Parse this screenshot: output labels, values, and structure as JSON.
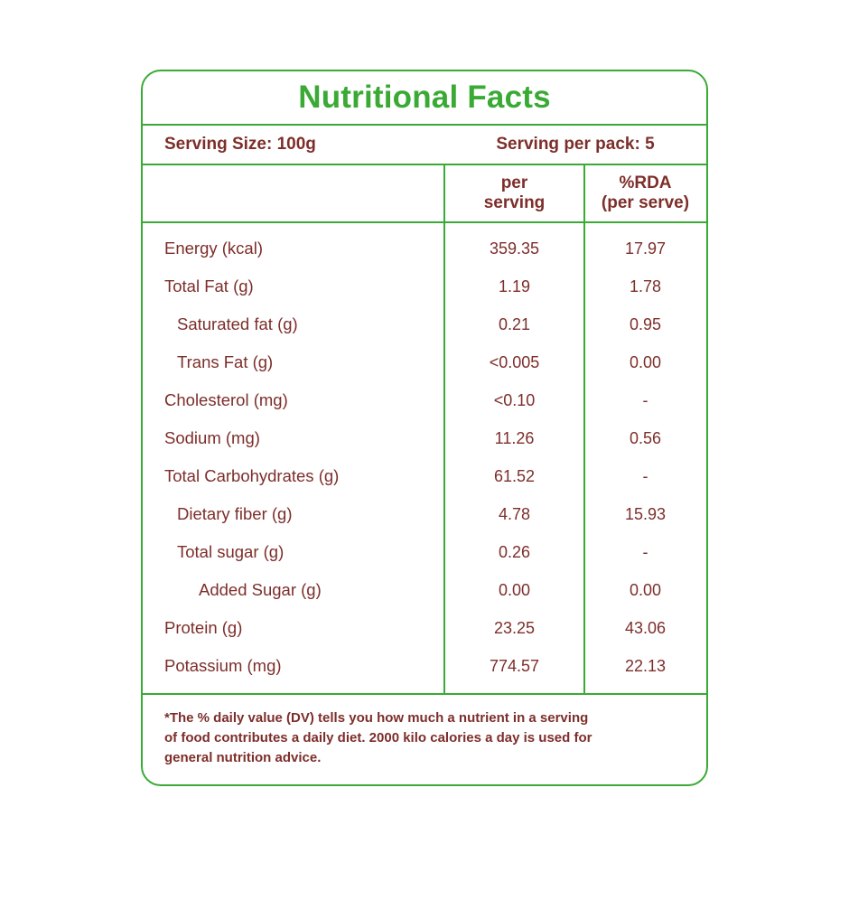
{
  "title": "Nutritional Facts",
  "serving": {
    "size_label": "Serving Size: 100g",
    "pack_label": "Serving per pack: 5"
  },
  "table": {
    "headers": {
      "col2_line1": "per",
      "col2_line2": "serving",
      "col3_line1": "%RDA",
      "col3_line2": "(per serve)"
    },
    "rows": [
      {
        "label": "Energy (kcal)",
        "per_serving": "359.35",
        "rda": "17.97"
      },
      {
        "label": "Total Fat (g)",
        "per_serving": "1.19",
        "rda": "1.78"
      },
      {
        "label": "Saturated fat (g)",
        "per_serving": "0.21",
        "rda": "0.95"
      },
      {
        "label": "Trans Fat (g)",
        "per_serving": "<0.005",
        "rda": "0.00"
      },
      {
        "label": "Cholesterol (mg)",
        "per_serving": "<0.10",
        "rda": "-"
      },
      {
        "label": "Sodium (mg)",
        "per_serving": "11.26",
        "rda": "0.56"
      },
      {
        "label": "Total Carbohydrates (g)",
        "per_serving": "61.52",
        "rda": "-"
      },
      {
        "label": "Dietary fiber (g)",
        "per_serving": "4.78",
        "rda": "15.93"
      },
      {
        "label": "Total sugar (g)",
        "per_serving": "0.26",
        "rda": "-"
      },
      {
        "label": "Added Sugar (g)",
        "per_serving": "0.00",
        "rda": "0.00"
      },
      {
        "label": "Protein (g)",
        "per_serving": "23.25",
        "rda": "43.06"
      },
      {
        "label": "Potassium (mg)",
        "per_serving": "774.57",
        "rda": "22.13"
      }
    ]
  },
  "footnote": {
    "line1": "*The % daily value (DV) tells you how much a nutrient in a serving",
    "line2": "of food contributes a daily diet. 2000 kilo calories a day is used for",
    "line3": "general nutrition advice."
  },
  "colors": {
    "green": "#3aaa35",
    "maroon": "#7d2e2a"
  }
}
